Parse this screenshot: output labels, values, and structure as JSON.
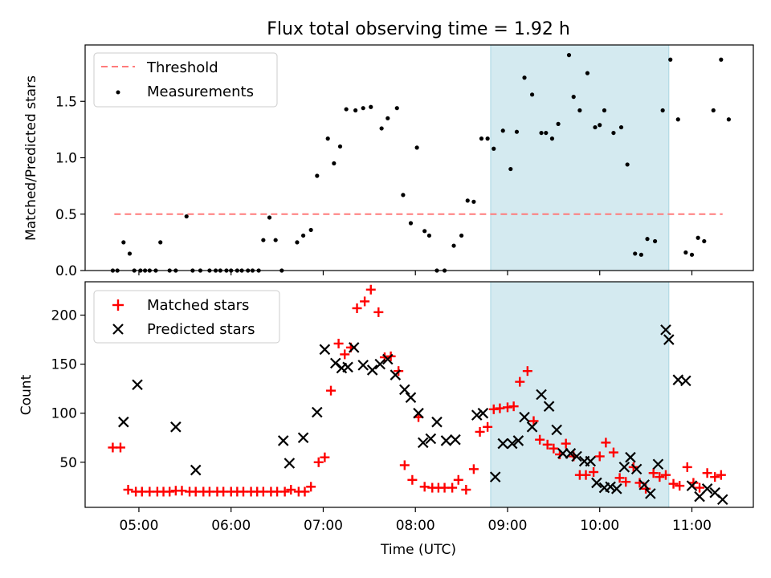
{
  "chart_data": [
    {
      "type": "scatter",
      "title": "Flux total observing time = 1.92 h",
      "xlabel": "",
      "ylabel": "Matched/Predicted stars",
      "xlim": [
        "04:25",
        "11:40"
      ],
      "ylim": [
        0,
        2.0
      ],
      "ytick_labels": [
        "0.0",
        "0.5",
        "1.0",
        "1.5"
      ],
      "xtick_labels": [],
      "shaded_interval": {
        "x_start": "08:49",
        "x_end": "10:45",
        "color": "#d4eaf0"
      },
      "legend_position": "top-left",
      "series": [
        {
          "name": "Threshold",
          "style": "dashed-line",
          "color": "#ff7b7b",
          "x": [
            "04:44",
            "11:20"
          ],
          "y": [
            0.5,
            0.5
          ]
        },
        {
          "name": "Measurements",
          "style": "dot",
          "color": "#000000",
          "x": [
            "04:43",
            "04:46",
            "04:50",
            "04:54",
            "04:57",
            "05:01",
            "05:04",
            "05:07",
            "05:11",
            "05:14",
            "05:20",
            "05:24",
            "05:31",
            "05:35",
            "05:40",
            "05:46",
            "05:50",
            "05:53",
            "05:57",
            "06:00",
            "06:04",
            "06:07",
            "06:11",
            "06:14",
            "06:18",
            "06:21",
            "06:25",
            "06:29",
            "06:33",
            "06:43",
            "06:47",
            "06:52",
            "06:56",
            "07:03",
            "07:07",
            "07:11",
            "07:15",
            "07:21",
            "07:26",
            "07:31",
            "07:38",
            "07:42",
            "07:48",
            "07:52",
            "07:57",
            "08:01",
            "08:06",
            "08:09",
            "08:14",
            "08:19",
            "08:25",
            "08:30",
            "08:34",
            "08:38",
            "08:43",
            "08:47",
            "08:51",
            "08:57",
            "09:02",
            "09:06",
            "09:11",
            "09:16",
            "09:22",
            "09:25",
            "09:29",
            "09:33",
            "09:40",
            "09:43",
            "09:47",
            "09:52",
            "09:57",
            "10:00",
            "10:03",
            "10:09",
            "10:14",
            "10:18",
            "10:23",
            "10:27",
            "10:31",
            "10:36",
            "10:41",
            "10:46",
            "10:51",
            "10:56",
            "11:00",
            "11:04",
            "11:08",
            "11:14",
            "11:19",
            "11:24"
          ],
          "y": [
            0,
            0,
            0.25,
            0.15,
            0,
            0,
            0,
            0,
            0,
            0.25,
            0,
            0,
            0.48,
            0,
            0,
            0,
            0,
            0,
            0,
            0,
            0,
            0,
            0,
            0,
            0,
            0.27,
            0.47,
            0.27,
            0,
            0.25,
            0.31,
            0.36,
            0.84,
            1.17,
            0.95,
            1.1,
            1.43,
            1.42,
            1.44,
            1.45,
            1.26,
            1.35,
            1.44,
            0.67,
            0.42,
            1.09,
            0.35,
            0.31,
            0,
            0,
            0.22,
            0.31,
            0.62,
            0.61,
            1.17,
            1.17,
            1.08,
            1.24,
            0.9,
            1.23,
            1.71,
            1.56,
            1.22,
            1.22,
            1.17,
            1.3,
            1.91,
            1.54,
            1.42,
            1.75,
            1.27,
            1.29,
            1.42,
            1.22,
            1.27,
            0.94,
            0.15,
            0.14,
            0.28,
            0.26,
            1.42,
            1.87,
            1.34,
            0.16,
            0.14,
            0.29,
            0.26,
            1.42,
            1.87,
            1.34
          ]
        }
      ]
    },
    {
      "type": "scatter",
      "title": "",
      "xlabel": "Time (UTC)",
      "ylabel": "Count",
      "xlim": [
        "04:25",
        "11:40"
      ],
      "ylim": [
        4,
        234
      ],
      "ytick_labels": [
        "50",
        "100",
        "150",
        "200"
      ],
      "xtick_labels": [
        "05:00",
        "06:00",
        "07:00",
        "08:00",
        "09:00",
        "10:00",
        "11:00"
      ],
      "shaded_interval": {
        "x_start": "08:49",
        "x_end": "10:45",
        "color": "#d4eaf0"
      },
      "legend_position": "top-left",
      "series": [
        {
          "name": "Matched stars",
          "marker": "plus",
          "color": "#ff0000",
          "x": [
            "04:43",
            "04:48",
            "04:53",
            "04:58",
            "05:02",
            "05:07",
            "05:12",
            "05:16",
            "05:20",
            "05:24",
            "05:28",
            "05:33",
            "05:37",
            "05:42",
            "05:46",
            "05:51",
            "05:55",
            "06:00",
            "06:04",
            "06:08",
            "06:13",
            "06:17",
            "06:21",
            "06:26",
            "06:30",
            "06:35",
            "06:39",
            "06:44",
            "06:48",
            "06:52",
            "06:57",
            "07:01",
            "07:05",
            "07:10",
            "07:14",
            "07:18",
            "07:22",
            "07:27",
            "07:31",
            "07:36",
            "07:40",
            "07:44",
            "07:49",
            "07:53",
            "07:58",
            "08:02",
            "08:06",
            "08:11",
            "08:15",
            "08:19",
            "08:24",
            "08:28",
            "08:33",
            "08:38",
            "08:42",
            "08:47",
            "08:51",
            "08:55",
            "09:00",
            "09:04",
            "09:08",
            "09:13",
            "09:17",
            "09:21",
            "09:26",
            "09:30",
            "09:34",
            "09:38",
            "09:43",
            "09:47",
            "09:51",
            "09:56",
            "10:00",
            "10:04",
            "10:09",
            "10:13",
            "10:17",
            "10:22",
            "10:26",
            "10:30",
            "10:35",
            "10:39",
            "10:43",
            "10:48",
            "10:52",
            "10:57",
            "11:01",
            "11:05",
            "11:10",
            "11:15",
            "11:19"
          ],
          "y": [
            65,
            65,
            22,
            20,
            20,
            20,
            20,
            20,
            20,
            21,
            21,
            20,
            20,
            20,
            20,
            20,
            20,
            20,
            20,
            20,
            20,
            20,
            20,
            20,
            20,
            20,
            22,
            20,
            20,
            25,
            50,
            55,
            123,
            171,
            160,
            167,
            207,
            214,
            226,
            203,
            157,
            158,
            143,
            47,
            32,
            96,
            25,
            24,
            24,
            24,
            24,
            32,
            22,
            43,
            81,
            86,
            104,
            105,
            106,
            107,
            132,
            143,
            92,
            73,
            68,
            64,
            58,
            69,
            56,
            37,
            37,
            40,
            56,
            70,
            60,
            34,
            30,
            45,
            29,
            23,
            39,
            35,
            37,
            28,
            26,
            45,
            29,
            24,
            39,
            35,
            37
          ]
        },
        {
          "name": "Predicted stars",
          "marker": "x",
          "color": "#000000",
          "x": [
            "04:50",
            "04:59",
            "05:24",
            "05:37",
            "06:34",
            "06:38",
            "06:47",
            "06:56",
            "07:01",
            "07:08",
            "07:12",
            "07:16",
            "07:20",
            "07:26",
            "07:32",
            "07:37",
            "07:42",
            "07:47",
            "07:53",
            "07:57",
            "08:02",
            "08:05",
            "08:10",
            "08:14",
            "08:20",
            "08:26",
            "08:40",
            "08:44",
            "08:52",
            "08:57",
            "09:03",
            "09:07",
            "09:11",
            "09:16",
            "09:22",
            "09:27",
            "09:32",
            "09:36",
            "09:41",
            "09:45",
            "09:50",
            "09:54",
            "09:58",
            "10:03",
            "10:07",
            "10:11",
            "10:16",
            "10:20",
            "10:24",
            "10:29",
            "10:33",
            "10:38",
            "10:43",
            "10:45",
            "10:51",
            "10:56",
            "11:00",
            "11:05",
            "11:10",
            "11:15",
            "11:20"
          ],
          "y": [
            91,
            129,
            86,
            42,
            72,
            49,
            75,
            101,
            165,
            151,
            146,
            147,
            167,
            149,
            144,
            150,
            155,
            139,
            124,
            116,
            100,
            70,
            74,
            91,
            72,
            73,
            98,
            100,
            35,
            69,
            69,
            72,
            96,
            86,
            119,
            107,
            83,
            59,
            59,
            56,
            51,
            51,
            29,
            24,
            25,
            23,
            45,
            55,
            43,
            27,
            18,
            48,
            185,
            175,
            134,
            133,
            26,
            15,
            23,
            19,
            12
          ]
        }
      ]
    }
  ]
}
